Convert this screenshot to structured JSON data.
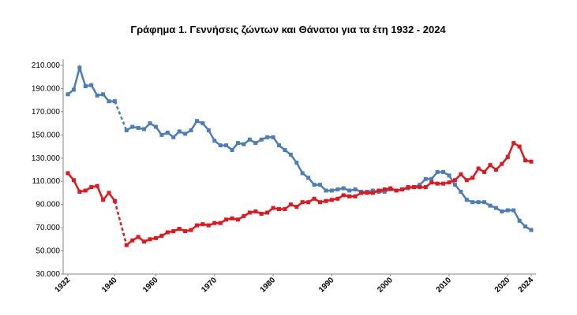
{
  "chart_data": {
    "type": "line",
    "title": "Γράφημα 1.  Γεννήσεις ζώντων και Θάνατοι για τα έτη 1932 - 2024",
    "categories": [
      "1932",
      null,
      null,
      null,
      null,
      null,
      null,
      null,
      "1940",
      null,
      null,
      null,
      null,
      null,
      null,
      "1960",
      null,
      null,
      null,
      null,
      null,
      null,
      null,
      null,
      null,
      "1970",
      null,
      null,
      null,
      null,
      null,
      null,
      null,
      null,
      null,
      "1980",
      null,
      null,
      null,
      null,
      null,
      null,
      null,
      null,
      null,
      "1990",
      null,
      null,
      null,
      null,
      null,
      null,
      null,
      null,
      null,
      "2000",
      null,
      null,
      null,
      null,
      null,
      null,
      null,
      null,
      null,
      "2010",
      null,
      null,
      null,
      null,
      null,
      null,
      null,
      null,
      null,
      "2020",
      null,
      null,
      null,
      "2024"
    ],
    "gap_style": "dashed",
    "series": [
      {
        "color": "#4a7ebb",
        "values": [
          185000,
          189000,
          208000,
          192000,
          193000,
          184000,
          185000,
          179000,
          179000,
          null,
          154000,
          157000,
          156000,
          155000,
          160000,
          157000,
          150000,
          152000,
          148000,
          153000,
          151000,
          154000,
          162000,
          160000,
          154000,
          145000,
          141000,
          141000,
          137000,
          143000,
          142000,
          146000,
          143000,
          146000,
          148000,
          148000,
          141000,
          137000,
          133000,
          126000,
          117000,
          113000,
          107000,
          107000,
          102000,
          102000,
          103000,
          104000,
          102000,
          103000,
          101000,
          101000,
          102000,
          101000,
          101000,
          103000,
          102000,
          103000,
          104000,
          105000,
          107000,
          112000,
          112000,
          118000,
          118000,
          115000,
          107000,
          101000,
          94000,
          92000,
          92000,
          92000,
          89000,
          87000,
          84000,
          85000,
          85000,
          76000,
          71000,
          68000
        ]
      },
      {
        "color": "#e8141b",
        "values": [
          117000,
          111000,
          101000,
          102000,
          105000,
          106000,
          94000,
          100000,
          93000,
          null,
          55000,
          59000,
          62000,
          58000,
          60000,
          61000,
          63000,
          66000,
          67000,
          69000,
          67000,
          68000,
          72000,
          73000,
          72000,
          74000,
          74000,
          77000,
          78000,
          77000,
          80000,
          83000,
          84000,
          82000,
          83000,
          87000,
          86000,
          86000,
          90000,
          88000,
          92000,
          92000,
          95000,
          92000,
          93000,
          94000,
          95000,
          98000,
          97000,
          97000,
          100000,
          100000,
          100000,
          102000,
          103000,
          104000,
          102000,
          103000,
          105000,
          105000,
          105000,
          105000,
          109000,
          108000,
          108000,
          109000,
          111000,
          116000,
          111000,
          113000,
          121000,
          118000,
          124000,
          120000,
          125000,
          131000,
          143000,
          140000,
          128000,
          127000
        ]
      }
    ],
    "ylim": [
      30000,
      210000
    ],
    "yticks": [
      {
        "value": 30000,
        "label": "30.000"
      },
      {
        "value": 50000,
        "label": "50.000"
      },
      {
        "value": 70000,
        "label": "70.000"
      },
      {
        "value": 90000,
        "label": "90.000"
      },
      {
        "value": 110000,
        "label": "110.000"
      },
      {
        "value": 130000,
        "label": "130.000"
      },
      {
        "value": 150000,
        "label": "150.000"
      },
      {
        "value": 170000,
        "label": "170.000"
      },
      {
        "value": 190000,
        "label": "190.000"
      },
      {
        "value": 210000,
        "label": "210.000"
      }
    ],
    "grid": false
  }
}
